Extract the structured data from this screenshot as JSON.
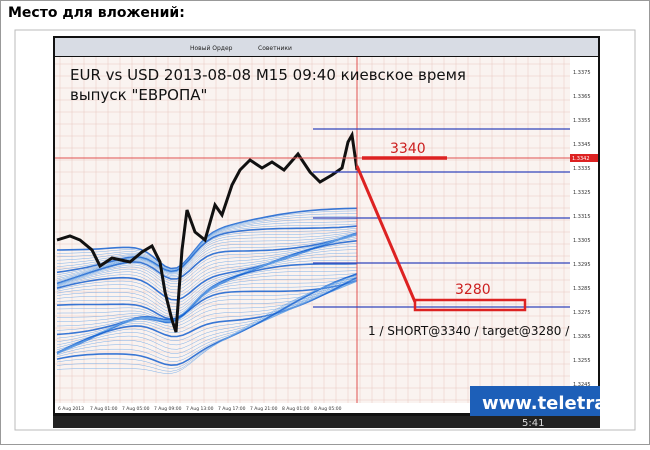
{
  "page": {
    "heading": "Место для вложений:"
  },
  "video": {
    "toolbar": [
      "Новый Ордер",
      "Советники"
    ],
    "chart_title": "EUR vs USD 2013-08-08  M15  09:40 киевское время",
    "chart_subtitle": "выпуск \"ЕВРОПА\"",
    "label_entry": "3340",
    "label_target": "3280",
    "trade_note": "1 / SHORT@3340 / target@3280 /",
    "current_price": "1.3342",
    "price_labels": [
      "1.3375",
      "1.3365",
      "1.3355",
      "1.3345",
      "1.3335",
      "1.3325",
      "1.3315",
      "1.3305",
      "1.3295",
      "1.3285",
      "1.3275",
      "1.3265",
      "1.3255",
      "1.3245"
    ],
    "time_labels": [
      "6 Aug 2013",
      "7 Aug 01:00",
      "7 Aug 05:00",
      "7 Aug 09:00",
      "7 Aug 13:00",
      "7 Aug 17:00",
      "7 Aug 21:00",
      "8 Aug 01:00",
      "8 Aug 05:00"
    ],
    "banner": "www.teletra",
    "time": "5:41"
  }
}
